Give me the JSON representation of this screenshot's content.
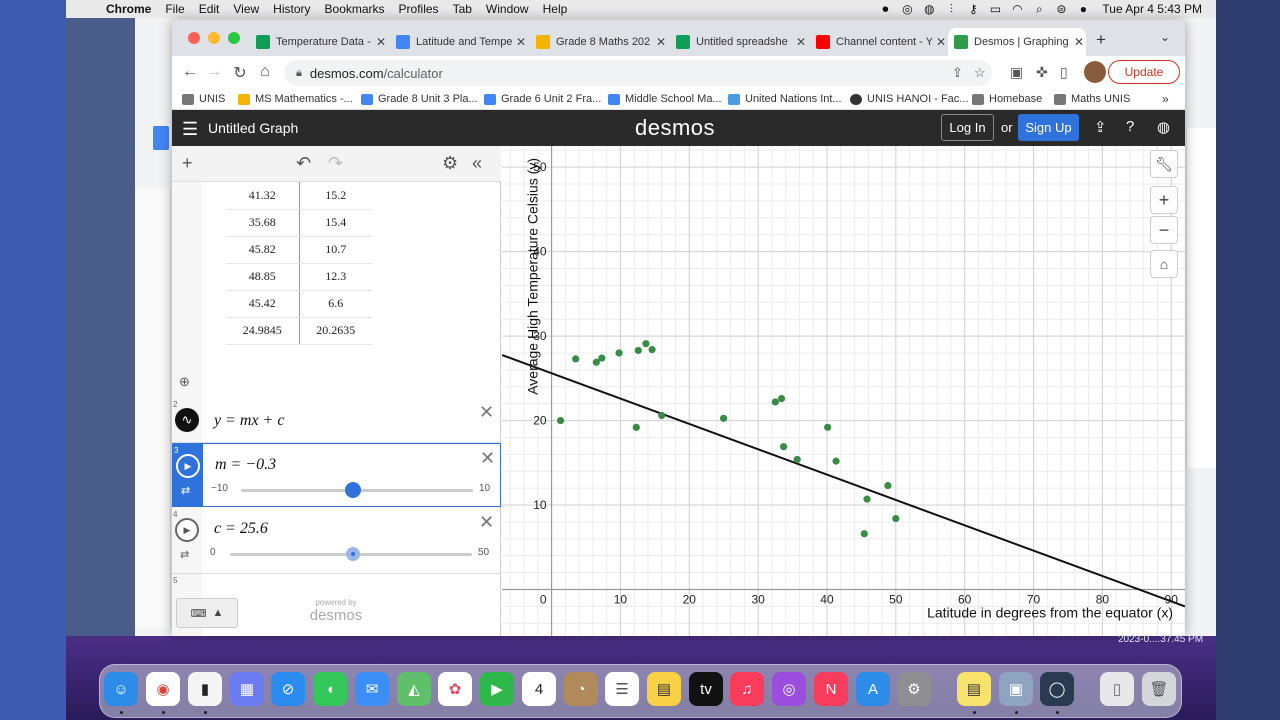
{
  "menubar": {
    "app": "Chrome",
    "items": [
      "File",
      "Edit",
      "View",
      "History",
      "Bookmarks",
      "Profiles",
      "Tab",
      "Window",
      "Help"
    ],
    "datetime": "Tue Apr 4  5:43 PM"
  },
  "tabs": [
    {
      "title": "Temperature Data -",
      "icon_color": "#0f9d58"
    },
    {
      "title": "Latitude and Tempe",
      "icon_color": "#4285f4"
    },
    {
      "title": "Grade 8 Maths 202",
      "icon_color": "#f4b400"
    },
    {
      "title": "Untitled spreadshe",
      "icon_color": "#0f9d58"
    },
    {
      "title": "Channel content - Y",
      "icon_color": "#ff0000"
    },
    {
      "title": "Desmos | Graphing",
      "icon_color": "#2e9d4a",
      "active": true
    }
  ],
  "address": {
    "host": "desmos.com",
    "path": "/calculator"
  },
  "update_label": "Update",
  "bookmarks": [
    {
      "label": "UNIS",
      "icon_color": "#777"
    },
    {
      "label": "MS Mathematics -...",
      "icon_color": "#f4b400"
    },
    {
      "label": "Grade 8 Unit 3 Pla...",
      "icon_color": "#4285f4"
    },
    {
      "label": "Grade 6 Unit 2 Fra...",
      "icon_color": "#4285f4"
    },
    {
      "label": "Middle School Ma...",
      "icon_color": "#4285f4"
    },
    {
      "label": "United Nations Int...",
      "icon_color": "#4a9be0"
    },
    {
      "label": "UNIS HANOI - Fac...",
      "icon_color": "#333"
    },
    {
      "label": "Homebase",
      "icon_color": "#777"
    },
    {
      "label": "Maths UNIS",
      "icon_color": "#777"
    }
  ],
  "bookmarks_more": "»",
  "desmos": {
    "graph_title": "Untitled Graph",
    "logo": "desmos",
    "login_label": "Log In",
    "or_label": "or",
    "signup_label": "Sign Up"
  },
  "table": [
    [
      "41.32",
      "15.2"
    ],
    [
      "35.68",
      "15.4"
    ],
    [
      "45.82",
      "10.7"
    ],
    [
      "48.85",
      "12.3"
    ],
    [
      "45.42",
      "6.6"
    ],
    [
      "24.9845",
      "20.2635"
    ]
  ],
  "expressions": [
    {
      "index": "2",
      "latex": "y = mx + c"
    },
    {
      "index": "3",
      "latex": "m = −0.3",
      "slider_min": "−10",
      "slider_max": "10",
      "value": -0.3
    },
    {
      "index": "4",
      "latex": "c = 25.6",
      "slider_min": "0",
      "slider_max": "50",
      "value": 25.6
    },
    {
      "index": "5"
    }
  ],
  "powered_by": "powered by",
  "powered_logo": "desmos",
  "chart_data": {
    "type": "scatter",
    "xlabel": "Latitude in degrees from the equator (x)",
    "ylabel": "Average High Temperature Celsius (y)",
    "xlim": [
      -7.2,
      92
    ],
    "ylim": [
      -5.5,
      52.5
    ],
    "x_ticks": [
      "10",
      "20",
      "30",
      "40",
      "50",
      "60",
      "70",
      "80",
      "90"
    ],
    "y_ticks": [
      "10",
      "20",
      "30",
      "40",
      "50"
    ],
    "origin_label": "0",
    "grid": true,
    "point_color": "#388c46",
    "points": [
      [
        1.3,
        20.0
      ],
      [
        3.5,
        27.3
      ],
      [
        6.5,
        26.9
      ],
      [
        7.3,
        27.4
      ],
      [
        9.8,
        28.0
      ],
      [
        12.3,
        19.2
      ],
      [
        12.6,
        28.3
      ],
      [
        13.7,
        29.1
      ],
      [
        14.6,
        28.4
      ],
      [
        16.0,
        20.6
      ],
      [
        32.5,
        22.2
      ],
      [
        33.4,
        22.6
      ],
      [
        33.7,
        16.9
      ],
      [
        35.68,
        15.4
      ],
      [
        40.1,
        19.2
      ],
      [
        41.32,
        15.2
      ],
      [
        45.42,
        6.6
      ],
      [
        45.82,
        10.7
      ],
      [
        48.85,
        12.3
      ],
      [
        50.0,
        8.4
      ],
      [
        24.9845,
        20.2635
      ]
    ],
    "line": {
      "m": -0.3,
      "c": 25.6,
      "color": "#111111",
      "label": "y = mx + c"
    }
  }
}
